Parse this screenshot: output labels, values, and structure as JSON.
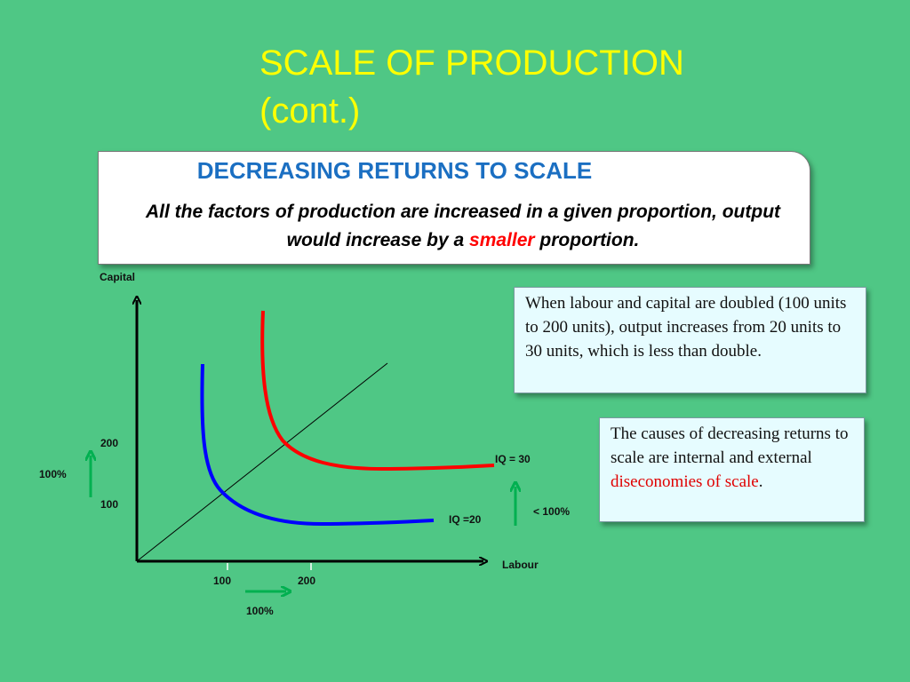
{
  "slide": {
    "title_line1": "SCALE OF PRODUCTION",
    "title_line2": "(cont.)",
    "title_color": "#ffff00",
    "background_color": "#4fc785"
  },
  "definition": {
    "heading": "DECREASING RETURNS TO SCALE",
    "heading_color": "#1b6fc2",
    "text_before": "All the factors of production are increased in a given proportion, output would increase by a ",
    "highlight": "smaller",
    "highlight_color": "#ff0000",
    "text_after": " proportion."
  },
  "notes": {
    "note1": "When labour and capital are doubled (100 units to 200 units), output increases from 20 units to 30 units, which is less than double.",
    "note2_before": "The causes of decreasing returns to scale are internal and external ",
    "note2_highlight": "diseconomies of scale",
    "note2_after": "."
  },
  "chart_data": {
    "type": "isoquant",
    "ylabel": "Capital",
    "xlabel": "Labour",
    "x_ticks": [
      "100",
      "200"
    ],
    "y_ticks": [
      "100",
      "200"
    ],
    "series": [
      {
        "name": "IQ =20",
        "color": "#0000ff",
        "passes_through": [
          100,
          100
        ]
      },
      {
        "name": "IQ = 30",
        "color": "#ff0000",
        "passes_through": [
          200,
          200
        ]
      }
    ],
    "ray_from_origin": true,
    "annotations": {
      "x_increase": "100%",
      "y_increase": "100%",
      "output_increase": "<  100%"
    },
    "arrow_color": "#00b050"
  }
}
